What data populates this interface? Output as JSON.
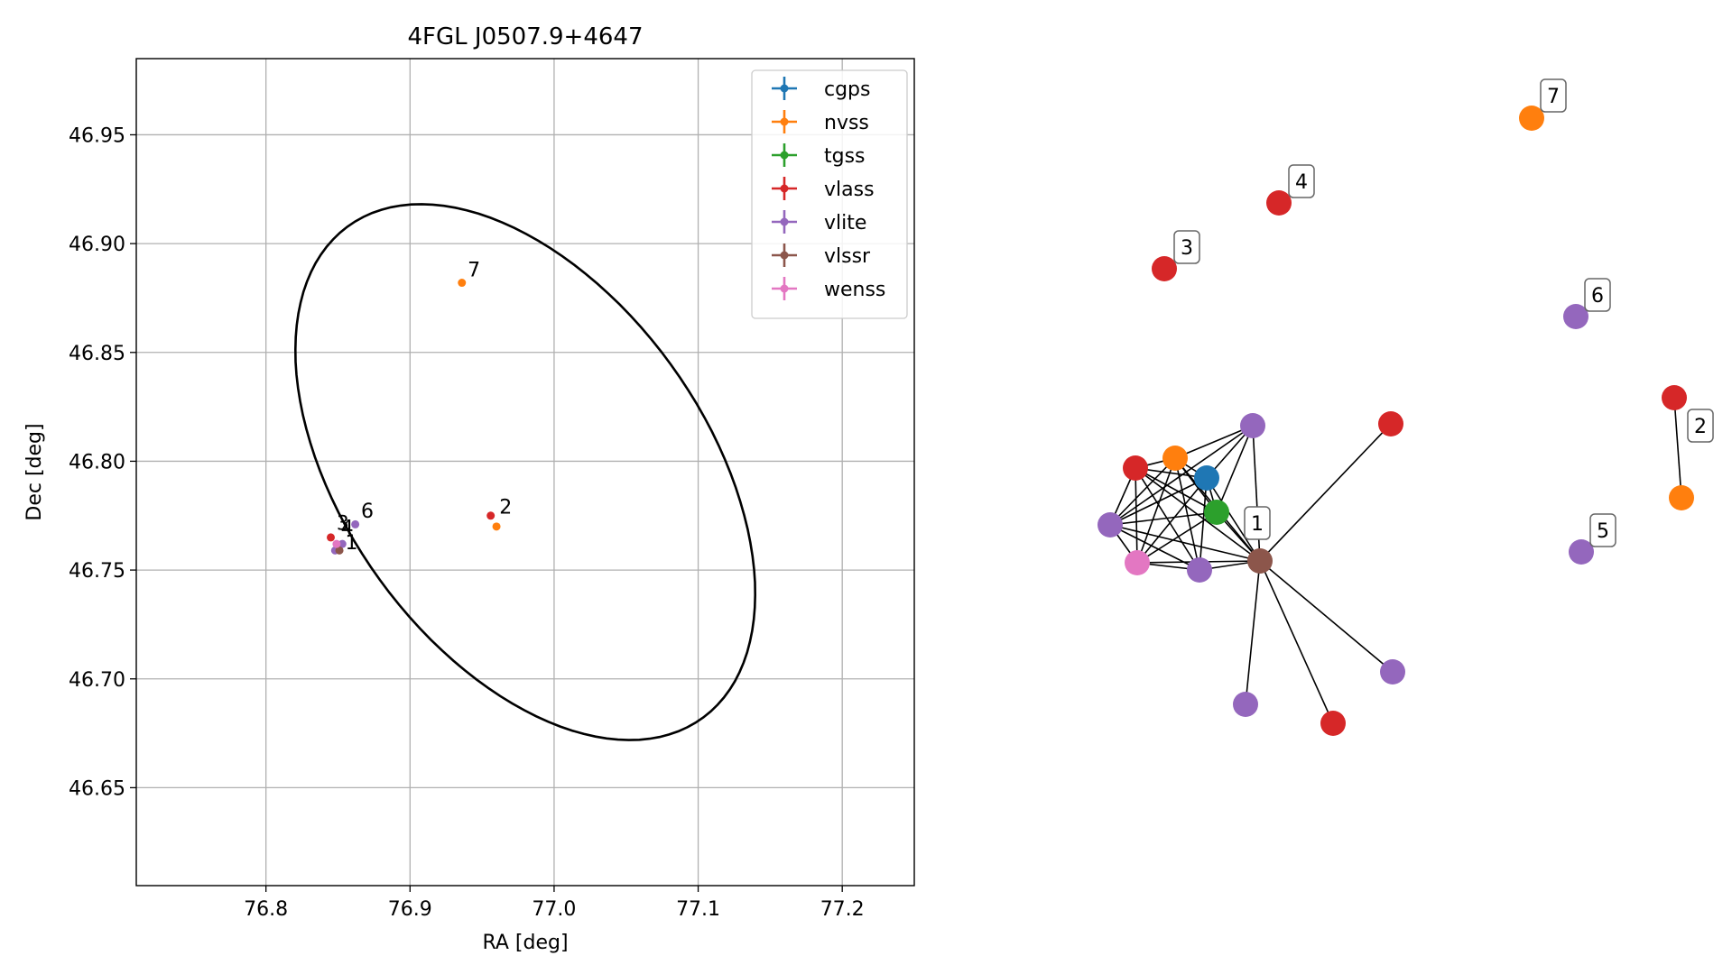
{
  "chart_data": [
    {
      "type": "scatter",
      "title": "4FGL J0507.9+4647",
      "xlabel": "RA [deg]",
      "ylabel": "Dec [deg]",
      "xlim": [
        76.71,
        77.25
      ],
      "ylim": [
        46.605,
        46.985
      ],
      "xticks": [
        "76.8",
        "76.9",
        "77.0",
        "77.1",
        "77.2"
      ],
      "xtick_values": [
        76.8,
        76.9,
        77.0,
        77.1,
        77.2
      ],
      "yticks": [
        "46.65",
        "46.70",
        "46.75",
        "46.80",
        "46.85",
        "46.90",
        "46.95"
      ],
      "ytick_values": [
        46.65,
        46.7,
        46.75,
        46.8,
        46.85,
        46.9,
        46.95
      ],
      "grid": true,
      "legend_position": "upper right",
      "ellipse": {
        "center": [
          76.98,
          46.795
        ],
        "semi_major_deg": 0.175,
        "semi_minor_deg": 0.1,
        "angle_deg": -30
      },
      "series": [
        {
          "name": "cgps",
          "color": "#1f77b4",
          "points": []
        },
        {
          "name": "nvss",
          "color": "#ff7f0e",
          "points": [
            [
              76.936,
              46.882
            ],
            [
              76.96,
              46.77
            ]
          ]
        },
        {
          "name": "tgss",
          "color": "#2ca02c",
          "points": []
        },
        {
          "name": "vlass",
          "color": "#d62728",
          "points": [
            [
              76.845,
              46.765
            ],
            [
              76.956,
              46.775
            ]
          ]
        },
        {
          "name": "vlite",
          "color": "#9467bd",
          "points": [
            [
              76.848,
              46.759
            ],
            [
              76.853,
              46.762
            ],
            [
              76.862,
              46.771
            ]
          ]
        },
        {
          "name": "vlssr",
          "color": "#8c564b",
          "points": [
            [
              76.851,
              46.759
            ]
          ]
        },
        {
          "name": "wenss",
          "color": "#e377c2",
          "points": [
            [
              76.849,
              46.762
            ]
          ]
        }
      ],
      "annotations": [
        {
          "text": "7",
          "x": 76.94,
          "y": 46.885
        },
        {
          "text": "2",
          "x": 76.962,
          "y": 46.776
        },
        {
          "text": "6",
          "x": 76.866,
          "y": 46.774
        },
        {
          "text": "3",
          "x": 76.849,
          "y": 46.7685
        },
        {
          "text": "4",
          "x": 76.852,
          "y": 46.7665
        },
        {
          "text": "1",
          "x": 76.855,
          "y": 46.7595
        }
      ]
    },
    {
      "type": "network",
      "nodes": [
        {
          "id": "cgps",
          "color": "#1f77b4"
        },
        {
          "id": "nvss1",
          "color": "#ff7f0e"
        },
        {
          "id": "tgss",
          "color": "#2ca02c"
        },
        {
          "id": "vlass1",
          "color": "#d62728"
        },
        {
          "id": "vlite1",
          "color": "#9467bd"
        },
        {
          "id": "vlite2",
          "color": "#9467bd"
        },
        {
          "id": "vlite3",
          "color": "#9467bd"
        },
        {
          "id": "wenss",
          "color": "#e377c2"
        },
        {
          "id": "vlssr",
          "color": "#8c564b",
          "label": "1"
        },
        {
          "id": "vlass2",
          "color": "#d62728"
        },
        {
          "id": "vlite4",
          "color": "#9467bd"
        },
        {
          "id": "vlass3",
          "color": "#d62728"
        },
        {
          "id": "vlite5",
          "color": "#9467bd"
        },
        {
          "id": "vlass4",
          "color": "#d62728",
          "label": "3"
        },
        {
          "id": "vlass5",
          "color": "#d62728",
          "label": "4"
        },
        {
          "id": "nvss7",
          "color": "#ff7f0e",
          "label": "7"
        },
        {
          "id": "vlite6",
          "color": "#9467bd",
          "label": "6"
        },
        {
          "id": "vlass6",
          "color": "#d62728"
        },
        {
          "id": "nvss2",
          "color": "#ff7f0e",
          "label": "2"
        },
        {
          "id": "vlite7",
          "color": "#9467bd",
          "label": "5"
        }
      ],
      "edges": [
        [
          "vlass1",
          "nvss1"
        ],
        [
          "vlass1",
          "cgps"
        ],
        [
          "vlass1",
          "tgss"
        ],
        [
          "vlass1",
          "vlssr"
        ],
        [
          "vlass1",
          "vlite2"
        ],
        [
          "vlass1",
          "wenss"
        ],
        [
          "vlass1",
          "vlite3"
        ],
        [
          "nvss1",
          "cgps"
        ],
        [
          "nvss1",
          "tgss"
        ],
        [
          "nvss1",
          "vlssr"
        ],
        [
          "nvss1",
          "vlite2"
        ],
        [
          "nvss1",
          "wenss"
        ],
        [
          "nvss1",
          "vlite3"
        ],
        [
          "nvss1",
          "vlite1"
        ],
        [
          "cgps",
          "tgss"
        ],
        [
          "cgps",
          "vlssr"
        ],
        [
          "cgps",
          "vlite2"
        ],
        [
          "cgps",
          "wenss"
        ],
        [
          "cgps",
          "vlite3"
        ],
        [
          "cgps",
          "vlite1"
        ],
        [
          "tgss",
          "vlssr"
        ],
        [
          "tgss",
          "vlite2"
        ],
        [
          "tgss",
          "wenss"
        ],
        [
          "tgss",
          "vlite1"
        ],
        [
          "vlite1",
          "vlite2"
        ],
        [
          "vlite1",
          "vlssr"
        ],
        [
          "vlite2",
          "wenss"
        ],
        [
          "vlite2",
          "vlite3"
        ],
        [
          "vlite2",
          "vlssr"
        ],
        [
          "wenss",
          "vlite3"
        ],
        [
          "wenss",
          "vlssr"
        ],
        [
          "vlite3",
          "vlssr"
        ],
        [
          "vlssr",
          "vlass2"
        ],
        [
          "vlssr",
          "vlite4"
        ],
        [
          "vlssr",
          "vlass3"
        ],
        [
          "vlssr",
          "vlite5"
        ],
        [
          "vlass6",
          "nvss2"
        ]
      ]
    }
  ]
}
